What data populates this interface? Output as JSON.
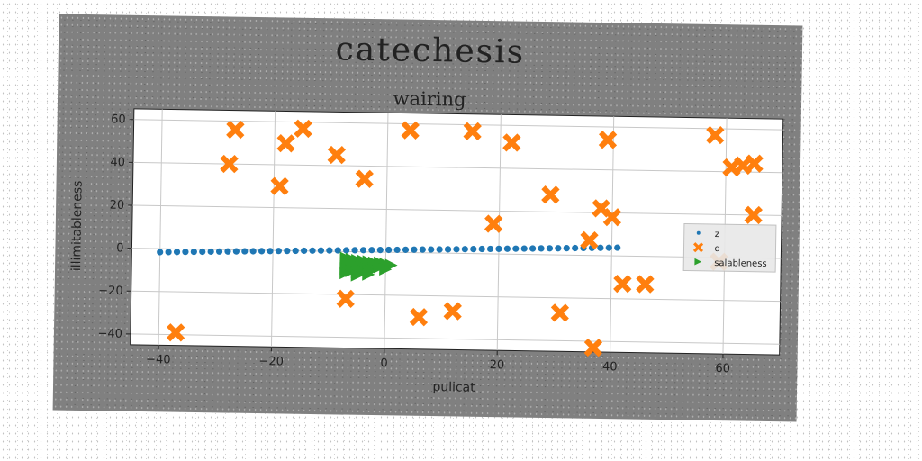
{
  "figure": {
    "suptitle": "catechesis"
  },
  "chart_data": {
    "type": "scatter",
    "title": "wairing",
    "xlabel": "pulicat",
    "ylabel": "illimitableness",
    "xlim": [
      -45,
      70
    ],
    "ylim": [
      -45,
      65
    ],
    "xticks": [
      -40,
      -20,
      0,
      20,
      40,
      60
    ],
    "yticks": [
      -40,
      -20,
      0,
      20,
      40,
      60
    ],
    "xtick_labels": [
      "−40",
      "−20",
      "0",
      "20",
      "40",
      "60"
    ],
    "ytick_labels": [
      "−40",
      "−20",
      "0",
      "20",
      "40",
      "60"
    ],
    "grid": true,
    "legend_position": "center-right",
    "series": [
      {
        "name": "z",
        "marker": "circle",
        "color": "#1f77b4",
        "points": [
          [
            -40,
            -1.6
          ],
          [
            -38.5,
            -1.5
          ],
          [
            -37,
            -1.4
          ],
          [
            -35.5,
            -1.3
          ],
          [
            -34,
            -1.2
          ],
          [
            -32.5,
            -1.1
          ],
          [
            -31,
            -1.0
          ],
          [
            -29.5,
            -0.9
          ],
          [
            -28,
            -0.8
          ],
          [
            -26.5,
            -0.7
          ],
          [
            -25,
            -0.6
          ],
          [
            -23.5,
            -0.5
          ],
          [
            -22,
            -0.4
          ],
          [
            -20.5,
            -0.3
          ],
          [
            -19,
            -0.2
          ],
          [
            -17.5,
            -0.1
          ],
          [
            -16,
            0.0
          ],
          [
            -14.5,
            0.1
          ],
          [
            -13,
            0.2
          ],
          [
            -11.5,
            0.3
          ],
          [
            -10,
            0.4
          ],
          [
            -8.5,
            0.5
          ],
          [
            -7,
            0.6
          ],
          [
            -5.5,
            0.7
          ],
          [
            -4,
            0.8
          ],
          [
            -2.5,
            0.9
          ],
          [
            -1,
            1.0
          ],
          [
            0.5,
            1.1
          ],
          [
            2,
            1.2
          ],
          [
            3.5,
            1.3
          ],
          [
            5,
            1.4
          ],
          [
            6.5,
            1.5
          ],
          [
            8,
            1.6
          ],
          [
            9.5,
            1.7
          ],
          [
            11,
            1.8
          ],
          [
            12.5,
            1.9
          ],
          [
            14,
            2.0
          ],
          [
            15.5,
            2.1
          ],
          [
            17,
            2.2
          ],
          [
            18.5,
            2.3
          ],
          [
            20,
            2.4
          ],
          [
            21.5,
            2.5
          ],
          [
            23,
            2.6
          ],
          [
            24.5,
            2.7
          ],
          [
            26,
            2.8
          ],
          [
            27.5,
            2.9
          ],
          [
            29,
            3.0
          ],
          [
            30.5,
            3.1
          ],
          [
            32,
            3.2
          ],
          [
            33.5,
            3.3
          ],
          [
            35,
            3.4
          ],
          [
            36.5,
            3.5
          ],
          [
            38,
            3.6
          ],
          [
            39.5,
            3.7
          ],
          [
            41,
            3.8
          ]
        ]
      },
      {
        "name": "q",
        "marker": "x",
        "color": "#ff7f0e",
        "points": [
          [
            -27,
            56
          ],
          [
            -28,
            40
          ],
          [
            -18,
            50
          ],
          [
            -15,
            57
          ],
          [
            -19,
            30
          ],
          [
            -9,
            45
          ],
          [
            -4,
            34
          ],
          [
            4,
            57
          ],
          [
            15,
            57
          ],
          [
            22,
            52
          ],
          [
            -7,
            -22
          ],
          [
            -37,
            -39
          ],
          [
            6,
            -30
          ],
          [
            12,
            -27
          ],
          [
            19,
            14
          ],
          [
            29,
            28
          ],
          [
            31,
            -27
          ],
          [
            36,
            7
          ],
          [
            38,
            22
          ],
          [
            39,
            54
          ],
          [
            40,
            18
          ],
          [
            37,
            -43
          ],
          [
            42,
            -13
          ],
          [
            46,
            -13
          ],
          [
            58,
            57
          ],
          [
            61,
            42
          ],
          [
            63,
            43
          ],
          [
            65,
            44
          ],
          [
            65,
            20
          ],
          [
            59,
            -2
          ]
        ]
      },
      {
        "name": "salableness",
        "marker": "triangle-right",
        "color": "#2ca02c",
        "points": [
          [
            -7,
            -3
          ],
          [
            -6,
            -3.5
          ],
          [
            -5,
            -4
          ],
          [
            -4,
            -4.2
          ],
          [
            -3,
            -4.5
          ],
          [
            -2,
            -5
          ],
          [
            -1,
            -5
          ],
          [
            0,
            -5.5
          ],
          [
            -7,
            -5.5
          ],
          [
            -6,
            -6
          ],
          [
            -5,
            -6.5
          ],
          [
            -4,
            -7
          ],
          [
            -3,
            -7.5
          ],
          [
            -2,
            -8
          ],
          [
            -7,
            -8
          ],
          [
            -6,
            -9
          ],
          [
            -5,
            -9.5
          ],
          [
            -4,
            -9
          ],
          [
            -3,
            -8.5
          ],
          [
            -1,
            -7
          ],
          [
            1,
            -6
          ],
          [
            -7,
            -10
          ],
          [
            -5,
            -11
          ],
          [
            -3,
            -10.5
          ],
          [
            0,
            -8
          ]
        ]
      }
    ]
  }
}
